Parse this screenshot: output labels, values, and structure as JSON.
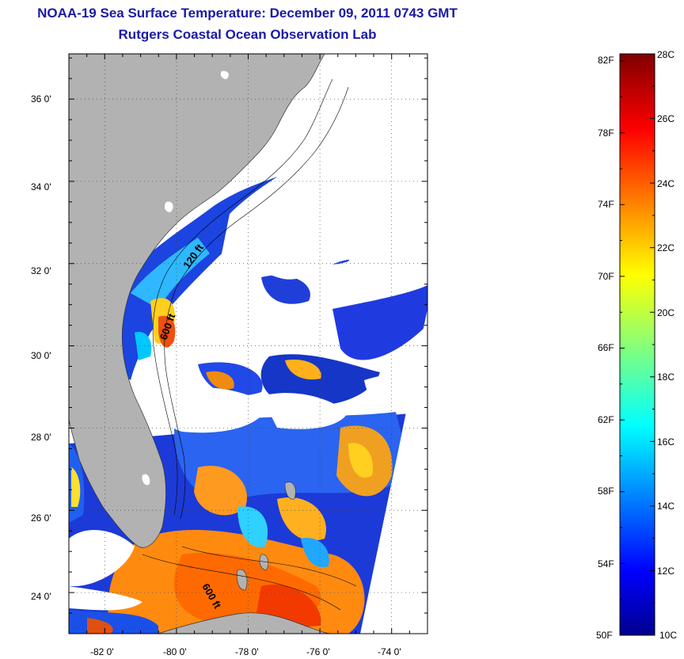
{
  "titles": {
    "line1": "NOAA-19 Sea Surface Temperature:  December 09, 2011 0743 GMT",
    "line2": "Rutgers Coastal Ocean Observation Lab"
  },
  "map": {
    "lat_labels": [
      "36 0'",
      "34 0'",
      "32 0'",
      "30 0'",
      "28 0'",
      "26 0'",
      "24 0'"
    ],
    "lon_labels": [
      "-82 0'",
      "-80 0'",
      "-78 0'",
      "-76 0'",
      "-74 0'"
    ],
    "lat_range": [
      23.0,
      37.1
    ],
    "lon_range": [
      -83.0,
      -73.0
    ],
    "isobath_labels": [
      "120 ft",
      "600 ft",
      "600 ft"
    ],
    "colors": {
      "land": "#b2b2b2",
      "cloud": "#ffffff",
      "grid": "#444444"
    }
  },
  "colorbar": {
    "f_labels": [
      "82F",
      "78F",
      "74F",
      "70F",
      "66F",
      "62F",
      "58F",
      "54F",
      "50F"
    ],
    "c_labels": [
      "28C",
      "26C",
      "24C",
      "22C",
      "20C",
      "18C",
      "16C",
      "14C",
      "12C",
      "10C"
    ],
    "range_c": [
      10,
      28
    ],
    "colormap": "jet"
  }
}
